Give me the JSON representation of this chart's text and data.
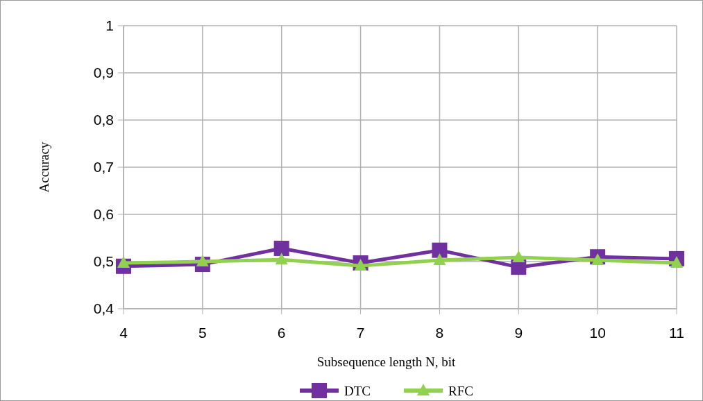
{
  "chart_data": {
    "type": "line",
    "xlabel": "Subsequence length N, bit",
    "ylabel": "Accuracy",
    "categories": [
      "4",
      "5",
      "6",
      "7",
      "8",
      "9",
      "10",
      "11"
    ],
    "series": [
      {
        "name": "DTC",
        "color": "#7030a0",
        "marker": "square",
        "values": [
          0.49,
          0.494,
          0.528,
          0.497,
          0.524,
          0.488,
          0.51,
          0.506
        ]
      },
      {
        "name": "RFC",
        "color": "#92d050",
        "marker": "triangle",
        "values": [
          0.497,
          0.5,
          0.504,
          0.491,
          0.503,
          0.509,
          0.503,
          0.497
        ]
      }
    ],
    "ylim": [
      0.4,
      1
    ],
    "yticks": [
      {
        "value": 0.4,
        "label": "0,4"
      },
      {
        "value": 0.5,
        "label": "0,5"
      },
      {
        "value": 0.6,
        "label": "0,6"
      },
      {
        "value": 0.7,
        "label": "0,7"
      },
      {
        "value": 0.8,
        "label": "0,8"
      },
      {
        "value": 0.9,
        "label": "0,9"
      },
      1
    ],
    "grid": true,
    "legend": "bottom",
    "line_style": "solid"
  }
}
